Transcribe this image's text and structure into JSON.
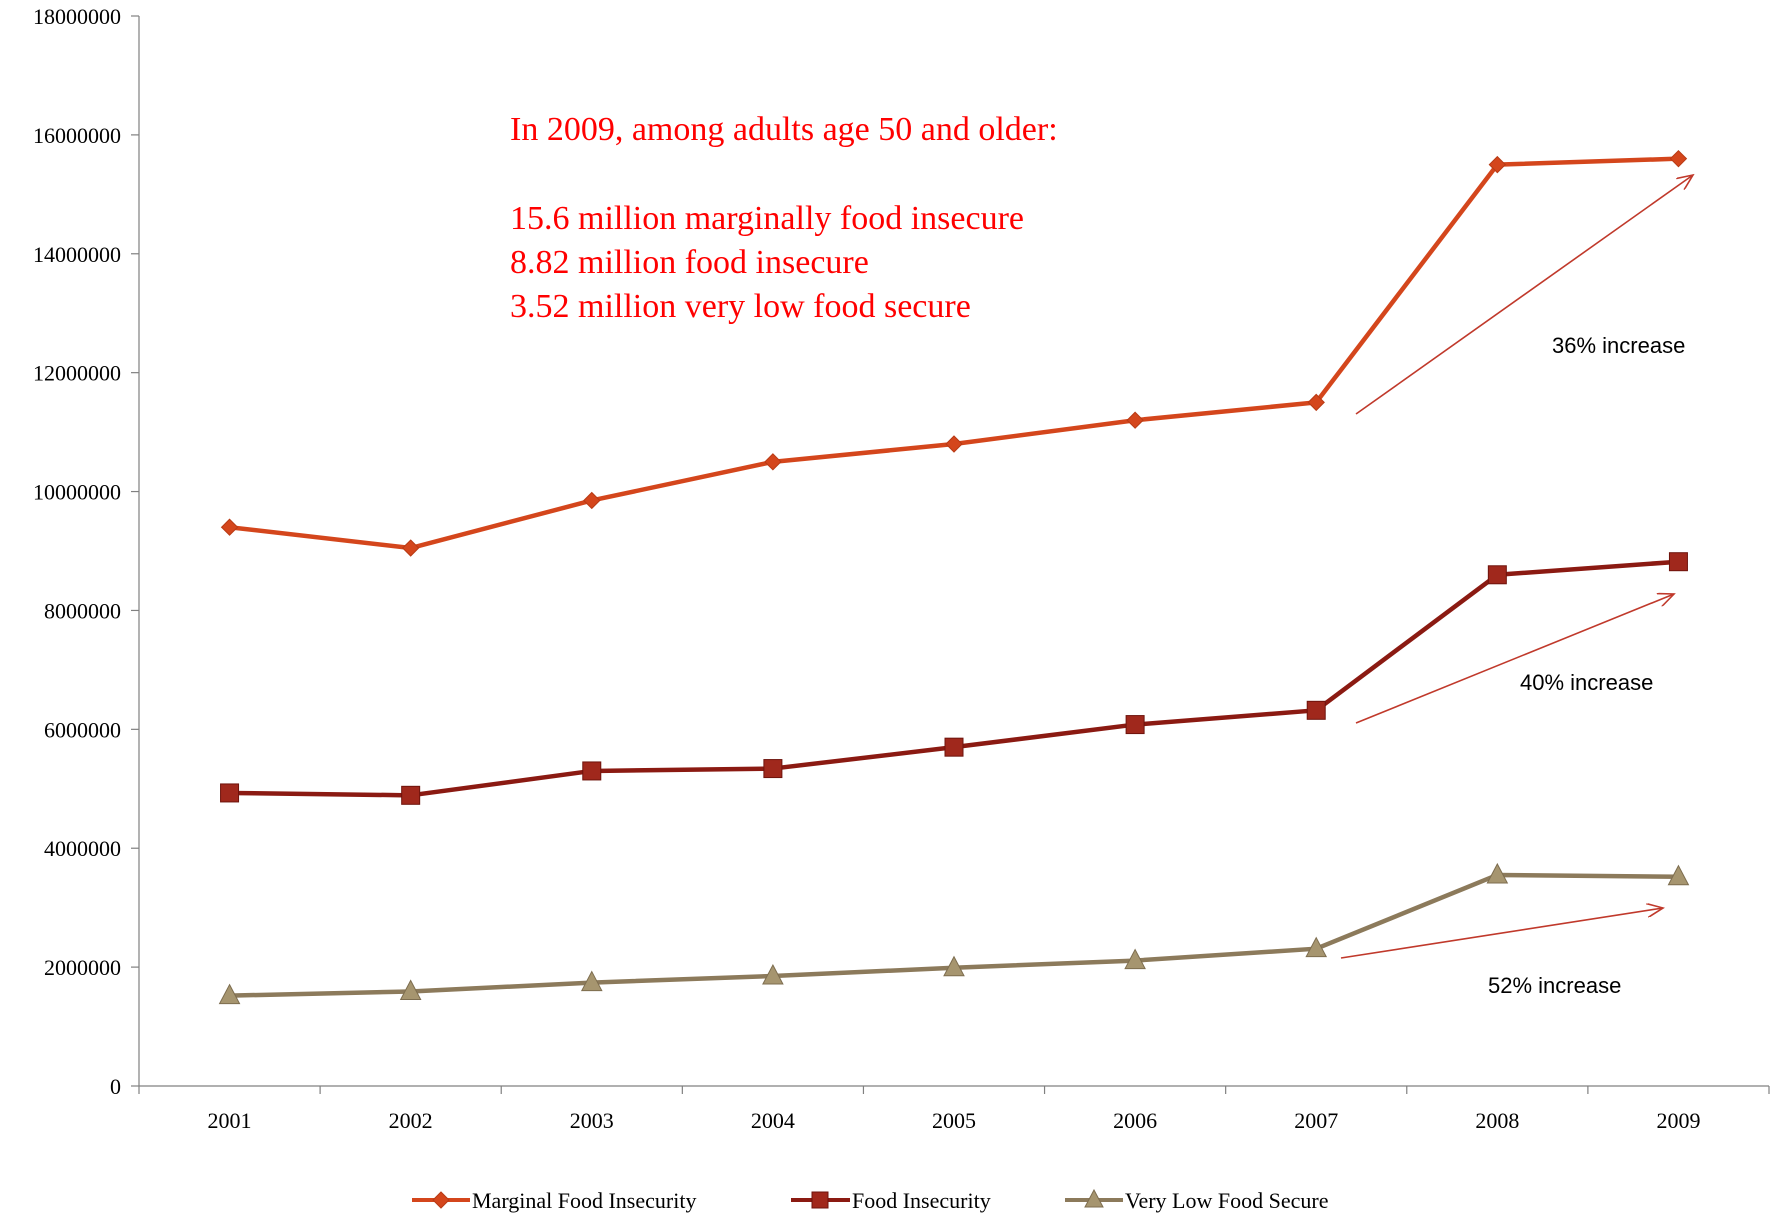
{
  "chart_data": {
    "type": "line",
    "categories": [
      "2001",
      "2002",
      "2003",
      "2004",
      "2005",
      "2006",
      "2007",
      "2008",
      "2009"
    ],
    "ylim": [
      0,
      18000000
    ],
    "yticks": [
      0,
      2000000,
      4000000,
      6000000,
      8000000,
      10000000,
      12000000,
      14000000,
      16000000,
      18000000
    ],
    "ytick_labels": [
      "0",
      "2000000",
      "4000000",
      "6000000",
      "8000000",
      "10000000",
      "12000000",
      "14000000",
      "16000000",
      "18000000"
    ],
    "grid": false,
    "legend_position": "bottom",
    "series": [
      {
        "name": "Marginal Food Insecurity",
        "color": "#d4461c",
        "marker": "diamond",
        "values": [
          9400000,
          9050000,
          9850000,
          10500000,
          10800000,
          11200000,
          11500000,
          15500000,
          15600000
        ]
      },
      {
        "name": "Food Insecurity",
        "color": "#8b1a12",
        "marker": "square",
        "values": [
          4930000,
          4890000,
          5300000,
          5340000,
          5700000,
          6080000,
          6320000,
          8600000,
          8820000
        ]
      },
      {
        "name": "Very Low Food Secure",
        "color": "#8c7a5b",
        "marker": "triangle",
        "values": [
          1520000,
          1590000,
          1740000,
          1850000,
          1990000,
          2110000,
          2310000,
          3550000,
          3520000
        ]
      }
    ],
    "annotation_lines": [
      "In 2009, among adults age 50 and older:",
      "15.6 million marginally food insecure",
      "8.82 million food insecure",
      "3.52 million very low food secure"
    ],
    "increase_labels": [
      "36% increase",
      "40% increase",
      "52% increase"
    ],
    "annotation_color": "#ff0000",
    "arrow_color": "#c0392b"
  }
}
